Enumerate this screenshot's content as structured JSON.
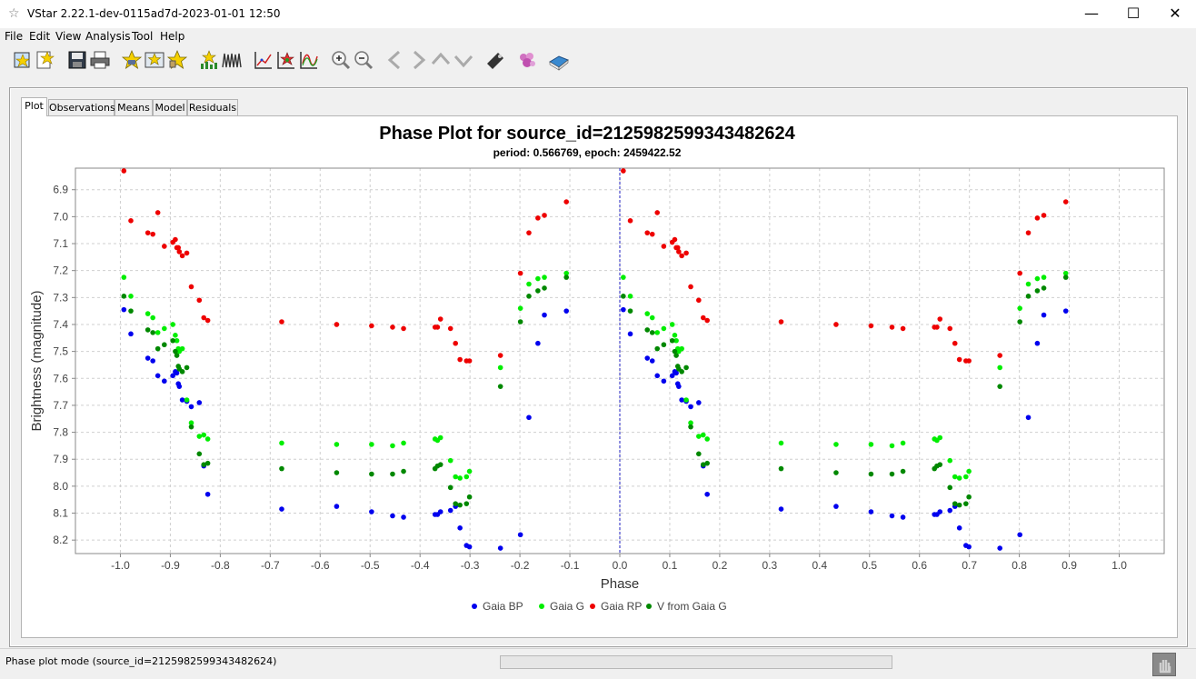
{
  "window": {
    "title": "VStar 2.22.1-dev-0115ad7d-2023-01-01 12:50",
    "app_icon": "star-icon",
    "controls": [
      "minimize-icon",
      "maximize-icon",
      "close-icon"
    ]
  },
  "menu": [
    "File",
    "Edit",
    "View",
    "Analysis",
    "Tool",
    "Help"
  ],
  "toolbar": [
    {
      "name": "new-star-from-file-icon"
    },
    {
      "name": "new-star-icon"
    },
    {
      "name": "save-icon"
    },
    {
      "name": "print-icon"
    },
    {
      "name": "info-star-icon"
    },
    {
      "name": "star-plot-icon"
    },
    {
      "name": "star-lock-icon"
    },
    {
      "name": "filter-icon"
    },
    {
      "name": "waveform-icon"
    },
    {
      "name": "chart-icon"
    },
    {
      "name": "star-phase-icon"
    },
    {
      "name": "model-icon"
    },
    {
      "name": "zoom-in-icon"
    },
    {
      "name": "zoom-out-icon"
    },
    {
      "name": "pan-left-icon"
    },
    {
      "name": "pan-right-icon"
    },
    {
      "name": "pan-up-icon"
    },
    {
      "name": "pan-down-icon"
    },
    {
      "name": "tool-icon"
    },
    {
      "name": "plugin-icon"
    },
    {
      "name": "help-book-icon"
    }
  ],
  "tabs": [
    {
      "label": "Plot",
      "active": true
    },
    {
      "label": "Observations",
      "active": false
    },
    {
      "label": "Means",
      "active": false
    },
    {
      "label": "Model",
      "active": false
    },
    {
      "label": "Residuals",
      "active": false
    }
  ],
  "chart_data": {
    "type": "scatter",
    "title": "Phase Plot for source_id=2125982599343482624",
    "subtitle": "period: 0.566769, epoch: 2459422.52",
    "xlabel": "Phase",
    "ylabel": "Brightness (magnitude)",
    "xlim": [
      -1.09,
      1.09
    ],
    "ylim": [
      8.25,
      6.82
    ],
    "y_inverted": true,
    "xticks": [
      -1.0,
      -0.9,
      -0.8,
      -0.7,
      -0.6,
      -0.5,
      -0.4,
      -0.3,
      -0.2,
      -0.1,
      0.0,
      0.1,
      0.2,
      0.3,
      0.4,
      0.5,
      0.6,
      0.7,
      0.8,
      0.9,
      1.0
    ],
    "xtick_labels": [
      "-1.0",
      "-0.9",
      "-0.8",
      "-0.7",
      "-0.6",
      "-0.5",
      "-0.4",
      "-0.3",
      "-0.2",
      "-0.1",
      "0.0",
      "0.1",
      "0.2",
      "0.3",
      "0.4",
      "0.5",
      "0.6",
      "0.7",
      "0.8",
      "0.9",
      "1.0"
    ],
    "yticks": [
      6.9,
      7.0,
      7.1,
      7.2,
      7.3,
      7.4,
      7.5,
      7.6,
      7.7,
      7.8,
      7.9,
      8.0,
      8.1,
      8.2
    ],
    "ytick_labels": [
      "6.9",
      "7.0",
      "7.1",
      "7.2",
      "7.3",
      "7.4",
      "7.5",
      "7.6",
      "7.7",
      "7.8",
      "7.9",
      "8.0",
      "8.1",
      "8.2"
    ],
    "grid": true,
    "legend_position": "bottom",
    "marker_line_at_x": 0.0,
    "base_phases": [
      0.007,
      0.021,
      0.055,
      0.065,
      0.075,
      0.088,
      0.105,
      0.11,
      0.113,
      0.116,
      0.118,
      0.124,
      0.133,
      0.142,
      0.158,
      0.167,
      0.175,
      0.323,
      0.433,
      0.503,
      0.545,
      0.567,
      0.63,
      0.635,
      0.641,
      0.661,
      0.671,
      0.68,
      0.693,
      0.699,
      0.761,
      0.801,
      0.818,
      0.836,
      0.849,
      0.893
    ],
    "series": [
      {
        "name": "Gaia BP",
        "color": "#0000ee",
        "values": [
          7.345,
          7.435,
          7.525,
          7.535,
          7.59,
          7.61,
          7.59,
          7.575,
          7.58,
          7.62,
          7.63,
          7.68,
          7.685,
          7.705,
          7.69,
          7.925,
          8.03,
          8.085,
          8.075,
          8.095,
          8.11,
          8.115,
          8.105,
          8.105,
          8.095,
          8.09,
          8.075,
          8.155,
          8.22,
          8.225,
          8.23,
          8.18,
          7.745,
          7.47,
          7.365,
          7.35
        ]
      },
      {
        "name": "Gaia G",
        "color": "#00ee00",
        "values": [
          7.225,
          7.295,
          7.36,
          7.375,
          7.43,
          7.415,
          7.4,
          7.44,
          7.46,
          7.49,
          7.5,
          7.49,
          7.68,
          7.765,
          7.815,
          7.81,
          7.825,
          7.84,
          7.845,
          7.845,
          7.85,
          7.84,
          7.825,
          7.83,
          7.82,
          7.905,
          7.965,
          7.97,
          7.965,
          7.945,
          7.56,
          7.34,
          7.25,
          7.23,
          7.225,
          7.21
        ]
      },
      {
        "name": "Gaia RP",
        "color": "#ee0000",
        "values": [
          6.83,
          7.015,
          7.06,
          7.065,
          6.985,
          7.11,
          7.095,
          7.085,
          7.115,
          7.115,
          7.13,
          7.145,
          7.135,
          7.26,
          7.31,
          7.375,
          7.385,
          7.39,
          7.4,
          7.405,
          7.41,
          7.415,
          7.41,
          7.41,
          7.38,
          7.415,
          7.47,
          7.53,
          7.535,
          7.535,
          7.515,
          7.21,
          7.06,
          7.005,
          6.995,
          6.945
        ]
      },
      {
        "name": "V from Gaia G",
        "color": "#008800",
        "values": [
          7.295,
          7.35,
          7.42,
          7.43,
          7.49,
          7.475,
          7.46,
          7.5,
          7.515,
          7.555,
          7.565,
          7.575,
          7.56,
          7.78,
          7.88,
          7.92,
          7.915,
          7.935,
          7.95,
          7.955,
          7.955,
          7.945,
          7.935,
          7.925,
          7.92,
          8.005,
          8.065,
          8.07,
          8.065,
          8.04,
          7.63,
          7.39,
          7.295,
          7.275,
          7.265,
          7.225
        ]
      }
    ]
  },
  "status": {
    "text": "Phase plot mode (source_id=2125982599343482624)",
    "progress": 0,
    "stop_icon": "stop-hand-icon"
  }
}
